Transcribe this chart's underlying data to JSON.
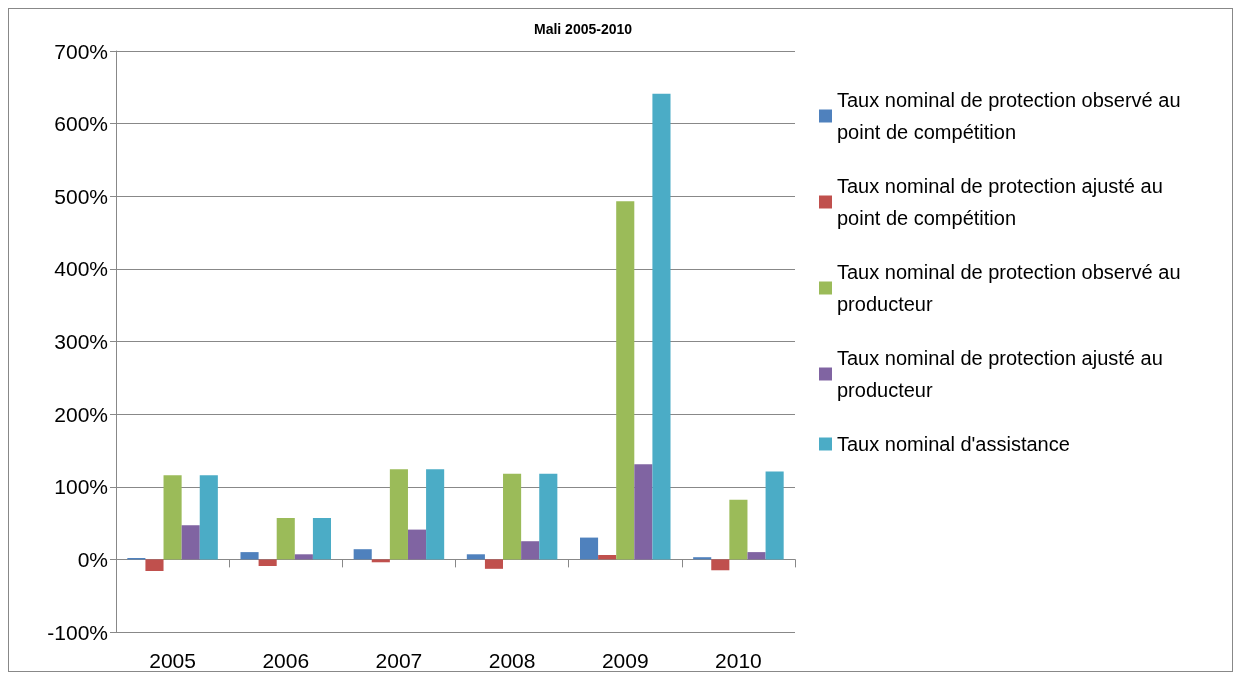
{
  "chart_data": {
    "type": "bar",
    "title": "Mali 2005-2010",
    "categories": [
      "2005",
      "2006",
      "2007",
      "2008",
      "2009",
      "2010"
    ],
    "series": [
      {
        "name": "Taux nominal de protection observé au point de compétition",
        "color": "#4f81bd",
        "values": [
          2,
          10,
          14,
          7,
          30,
          3
        ]
      },
      {
        "name": "Taux nominal de protection ajusté au point de compétition",
        "color": "#c0504d",
        "values": [
          -16,
          -9,
          -4,
          -13,
          6,
          -15
        ]
      },
      {
        "name": "Taux nominal de protection observé au producteur",
        "color": "#9bbb59",
        "values": [
          116,
          57,
          124,
          118,
          493,
          82
        ]
      },
      {
        "name": "Taux nominal de protection ajusté au producteur",
        "color": "#8064a2",
        "values": [
          47,
          7,
          41,
          25,
          131,
          10
        ]
      },
      {
        "name": "Taux nominal d'assistance",
        "color": "#4bacc6",
        "values": [
          116,
          57,
          124,
          118,
          641,
          121
        ]
      }
    ],
    "ylim": [
      -100,
      700
    ],
    "yticks": [
      {
        "value": -100,
        "label": "-100%"
      },
      {
        "value": 0,
        "label": "0%"
      },
      {
        "value": 100,
        "label": "100%"
      },
      {
        "value": 200,
        "label": "200%"
      },
      {
        "value": 300,
        "label": "300%"
      },
      {
        "value": 400,
        "label": "400%"
      },
      {
        "value": 500,
        "label": "500%"
      },
      {
        "value": 600,
        "label": "600%"
      },
      {
        "value": 700,
        "label": "700%"
      }
    ],
    "grid": "y",
    "legend": "right"
  }
}
